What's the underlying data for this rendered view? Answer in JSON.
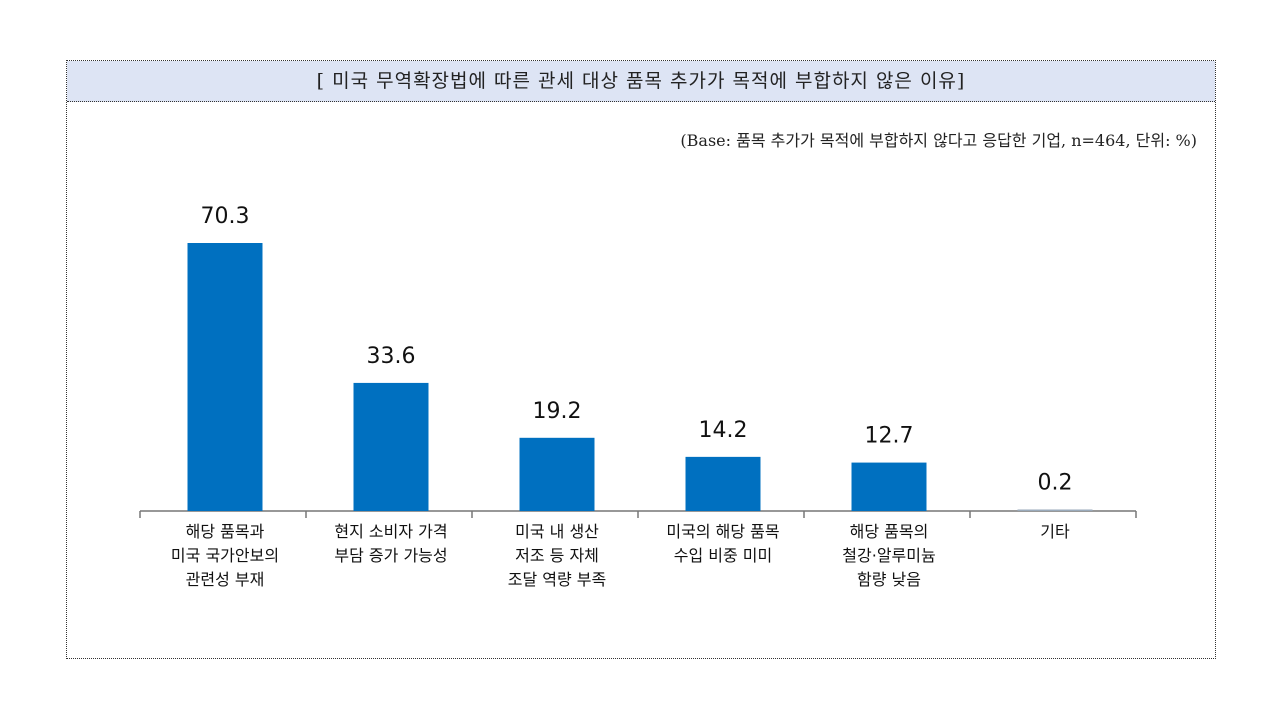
{
  "chart_data": {
    "type": "bar",
    "title": "[ 미국 무역확장법에 따른 관세 대상 품목 추가가 목적에 부합하지 않은 이유]",
    "subtitle": "(Base: 품목 추가가 목적에 부합하지 않다고 응답한 기업, n=464, 단위: %)",
    "categories": [
      "해당 품목과\n미국 국가안보의\n관련성 부재",
      "현지 소비자 가격\n부담 증가 가능성",
      "미국 내 생산\n저조 등 자체\n조달 역량 부족",
      "미국의 해당 품목\n수입 비중 미미",
      "해당 품목의\n철강·알루미늄\n함량 낮음",
      "기타"
    ],
    "values": [
      70.3,
      33.6,
      19.2,
      14.2,
      12.7,
      0.2
    ],
    "value_labels": [
      "70.3",
      "33.6",
      "19.2",
      "14.2",
      "12.7",
      "0.2"
    ],
    "ylim": [
      0,
      75
    ],
    "grid": false,
    "bar_color": "#0070c0",
    "title_band_color": "#dde4f4"
  }
}
